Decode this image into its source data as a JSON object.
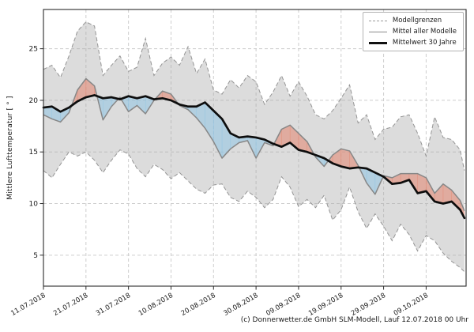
{
  "figure": {
    "background": "#ffffff",
    "caption": "(c) Donnerwetter.de GmbH SLM-Modell, Lauf 12.07.2018 00 Uhr"
  },
  "legend": {
    "items": [
      {
        "label": "Modellgrenzen",
        "style": "dashed",
        "color": "#999999"
      },
      {
        "label": "Mittel aller Modelle",
        "style": "solid",
        "color": "#8a8a8a"
      },
      {
        "label": "Mittelwert 30 Jahre",
        "style": "thick",
        "color": "#111111"
      }
    ],
    "border_color": "#b3b3b3"
  },
  "chart_data": {
    "type": "line",
    "title": "",
    "xlabel": "",
    "ylabel": "Mittlere Lufttemperatur [ ° ]",
    "grid": true,
    "legend_position": "upper right",
    "start_date": "11.07.2018",
    "x_days_since_start": [
      0,
      2,
      4,
      6,
      8,
      10,
      12,
      14,
      16,
      18,
      20,
      22,
      24,
      26,
      28,
      30,
      32,
      34,
      36,
      38,
      40,
      42,
      44,
      46,
      48,
      50,
      52,
      54,
      56,
      58,
      60,
      62,
      64,
      66,
      68,
      70,
      72,
      74,
      76,
      78,
      80,
      82,
      84,
      86,
      88,
      90,
      92,
      94,
      96,
      98,
      99
    ],
    "x_tick_days": [
      0,
      10,
      20,
      30,
      40,
      50,
      60,
      70,
      80,
      90
    ],
    "x_tick_labels": [
      "11.07.2018",
      "21.07.2018",
      "31.07.2018",
      "10.08.2018",
      "20.08.2018",
      "30.08.2018",
      "09.09.2018",
      "19.09.2018",
      "29.09.2018",
      "09.10.2018"
    ],
    "xlim": [
      0,
      99.4
    ],
    "ylim": [
      2.0,
      28.8
    ],
    "y_ticks": [
      5,
      10,
      15,
      20,
      25
    ],
    "series": [
      {
        "name": "Modellgrenzen (obere Grenze)",
        "key": "upper",
        "values": [
          23.0,
          23.4,
          22.2,
          24.3,
          26.7,
          27.6,
          27.2,
          22.4,
          23.4,
          24.3,
          22.8,
          23.2,
          26.0,
          22.4,
          23.6,
          24.2,
          23.4,
          25.2,
          22.6,
          24.0,
          21.0,
          20.6,
          22.0,
          21.2,
          22.4,
          21.8,
          19.6,
          20.8,
          22.4,
          20.4,
          21.8,
          20.4,
          18.6,
          18.2,
          19.0,
          20.2,
          21.5,
          17.8,
          18.6,
          16.2,
          17.2,
          17.4,
          18.4,
          18.6,
          16.8,
          14.6,
          18.4,
          16.4,
          16.2,
          15.2,
          13.2
        ]
      },
      {
        "name": "Modellgrenzen (untere Grenze)",
        "key": "lower",
        "values": [
          13.2,
          12.5,
          13.8,
          15.0,
          14.6,
          15.0,
          14.2,
          13.0,
          14.2,
          15.2,
          14.8,
          13.4,
          12.6,
          13.8,
          13.3,
          12.4,
          13.0,
          12.2,
          11.4,
          11.0,
          11.8,
          11.9,
          10.6,
          10.2,
          11.2,
          10.6,
          9.6,
          10.4,
          12.6,
          11.6,
          9.7,
          10.4,
          9.6,
          10.8,
          8.4,
          9.4,
          11.6,
          9.2,
          7.6,
          9.0,
          7.8,
          6.4,
          8.0,
          7.0,
          5.4,
          6.9,
          6.4,
          5.2,
          4.4,
          3.8,
          3.4
        ]
      },
      {
        "name": "Mittel aller Modelle",
        "key": "model_mean",
        "values": [
          18.6,
          18.2,
          17.9,
          18.8,
          21.0,
          22.1,
          21.4,
          18.1,
          19.4,
          20.3,
          18.9,
          19.5,
          18.7,
          20.0,
          20.9,
          20.6,
          19.5,
          19.1,
          18.3,
          17.3,
          16.0,
          14.4,
          15.3,
          15.9,
          16.1,
          14.4,
          15.9,
          15.6,
          17.2,
          17.6,
          16.8,
          16.0,
          14.5,
          13.6,
          14.7,
          15.3,
          15.1,
          13.7,
          12.0,
          10.9,
          12.7,
          12.5,
          12.9,
          12.9,
          12.9,
          12.5,
          11.0,
          11.9,
          11.3,
          10.3,
          9.3
        ]
      },
      {
        "name": "Mittelwert 30 Jahre",
        "key": "normal",
        "values": [
          19.3,
          19.4,
          18.9,
          19.3,
          19.9,
          20.3,
          20.5,
          20.2,
          20.3,
          20.1,
          20.4,
          20.2,
          20.4,
          20.1,
          20.2,
          20.0,
          19.6,
          19.4,
          19.4,
          19.8,
          19.0,
          18.2,
          16.8,
          16.4,
          16.5,
          16.4,
          16.2,
          15.8,
          15.5,
          15.9,
          15.2,
          15.0,
          14.7,
          14.4,
          13.9,
          13.6,
          13.4,
          13.5,
          13.4,
          13.0,
          12.6,
          11.9,
          12.0,
          12.3,
          11.0,
          11.2,
          10.2,
          10.0,
          10.2,
          9.4,
          8.6
        ]
      }
    ],
    "fills": {
      "model_range_band": "between upper and lower",
      "warmer_than_normal": "model_mean above normal",
      "colder_than_normal": "model_mean below normal"
    },
    "colors": {
      "band": "#ababab",
      "band_edge": "#949494",
      "model_mean": "#878787",
      "normal": "#0d0d0d",
      "warmer": "#e28a76",
      "colder": "#8fc4e4",
      "grid": "#cdcdcd",
      "spine": "#2b2b2b",
      "text": "#1a1a1a"
    }
  }
}
